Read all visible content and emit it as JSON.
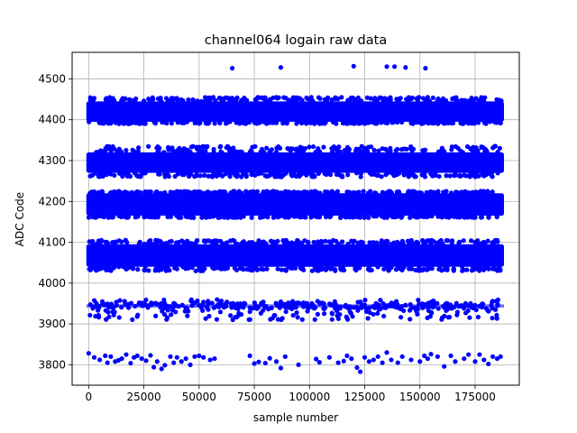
{
  "chart_data": {
    "type": "scatter",
    "title": "channel064 logain raw data",
    "xlabel": "sample number",
    "ylabel": "ADC Code",
    "xlim": [
      -7500,
      195000
    ],
    "ylim": [
      3750,
      4565
    ],
    "xticks": [
      0,
      25000,
      50000,
      75000,
      100000,
      125000,
      150000,
      175000
    ],
    "xtick_labels": [
      "0",
      "25000",
      "50000",
      "75000",
      "100000",
      "125000",
      "150000",
      "175000"
    ],
    "yticks": [
      3800,
      3900,
      4000,
      4100,
      4200,
      4300,
      4400,
      4500
    ],
    "ytick_labels": [
      "3800",
      "3900",
      "4000",
      "4100",
      "4200",
      "4300",
      "4400",
      "4500"
    ],
    "grid": true,
    "color": "#0000ff",
    "x_range": [
      0,
      187000
    ],
    "dense_bands": [
      {
        "y_min": 4395,
        "y_max": 4445,
        "y_spread": [
          4390,
          4455
        ]
      },
      {
        "y_min": 4270,
        "y_max": 4320,
        "y_spread": [
          4260,
          4335
        ]
      },
      {
        "y_min": 4165,
        "y_max": 4220,
        "y_spread": [
          4160,
          4225
        ]
      },
      {
        "y_min": 4040,
        "y_max": 4095,
        "y_spread": [
          4030,
          4105
        ]
      }
    ],
    "sparse_band": {
      "y_min": 3910,
      "y_max": 3960,
      "approx_points": 420
    },
    "outliers_low": [
      [
        0,
        3828
      ],
      [
        2500,
        3818
      ],
      [
        5000,
        3812
      ],
      [
        7500,
        3822
      ],
      [
        8500,
        3805
      ],
      [
        10000,
        3820
      ],
      [
        12000,
        3808
      ],
      [
        13500,
        3811
      ],
      [
        15000,
        3815
      ],
      [
        17000,
        3825
      ],
      [
        19000,
        3804
      ],
      [
        20500,
        3818
      ],
      [
        22000,
        3822
      ],
      [
        24000,
        3815
      ],
      [
        26000,
        3810
      ],
      [
        28000,
        3823
      ],
      [
        29500,
        3794
      ],
      [
        31000,
        3808
      ],
      [
        33000,
        3790
      ],
      [
        34500,
        3799
      ],
      [
        37000,
        3820
      ],
      [
        38500,
        3805
      ],
      [
        40000,
        3818
      ],
      [
        42000,
        3808
      ],
      [
        44000,
        3815
      ],
      [
        46000,
        3800
      ],
      [
        48000,
        3820
      ],
      [
        50000,
        3822
      ],
      [
        52000,
        3818
      ],
      [
        55000,
        3812
      ],
      [
        57000,
        3815
      ],
      [
        73000,
        3822
      ],
      [
        75000,
        3803
      ],
      [
        77000,
        3807
      ],
      [
        80000,
        3804
      ],
      [
        82000,
        3816
      ],
      [
        85000,
        3808
      ],
      [
        87000,
        3792
      ],
      [
        89000,
        3820
      ],
      [
        95000,
        3800
      ],
      [
        103000,
        3814
      ],
      [
        104500,
        3806
      ],
      [
        109000,
        3818
      ],
      [
        113000,
        3805
      ],
      [
        115500,
        3809
      ],
      [
        117000,
        3822
      ],
      [
        119000,
        3815
      ],
      [
        121500,
        3793
      ],
      [
        123000,
        3783
      ],
      [
        125000,
        3818
      ],
      [
        127000,
        3808
      ],
      [
        129000,
        3812
      ],
      [
        131000,
        3820
      ],
      [
        133000,
        3805
      ],
      [
        135000,
        3830
      ],
      [
        137000,
        3812
      ],
      [
        140000,
        3805
      ],
      [
        142000,
        3820
      ],
      [
        146000,
        3812
      ],
      [
        150000,
        3808
      ],
      [
        152000,
        3822
      ],
      [
        153500,
        3815
      ],
      [
        155000,
        3826
      ],
      [
        158000,
        3820
      ],
      [
        161000,
        3796
      ],
      [
        164000,
        3822
      ],
      [
        166000,
        3808
      ],
      [
        170000,
        3815
      ],
      [
        172000,
        3825
      ],
      [
        175000,
        3808
      ],
      [
        177000,
        3825
      ],
      [
        179000,
        3812
      ],
      [
        181000,
        3802
      ],
      [
        183000,
        3820
      ],
      [
        185000,
        3815
      ],
      [
        186500,
        3820
      ]
    ],
    "outliers_high": [
      [
        65000,
        4526
      ],
      [
        87000,
        4528
      ],
      [
        120000,
        4531
      ],
      [
        135000,
        4530
      ],
      [
        138500,
        4530
      ],
      [
        143500,
        4528
      ],
      [
        152500,
        4526
      ]
    ]
  }
}
